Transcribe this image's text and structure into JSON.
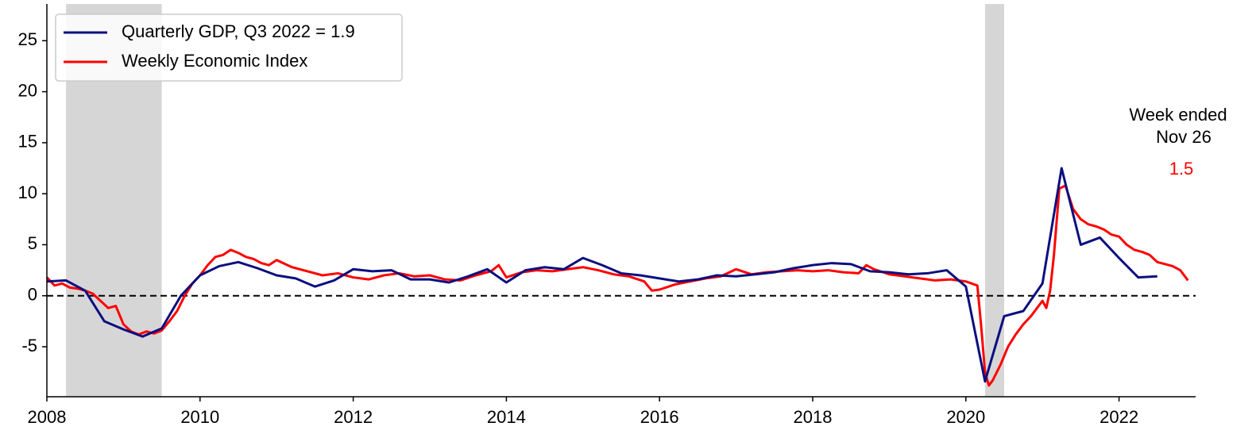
{
  "chart_data": {
    "type": "line",
    "xlim": [
      2008,
      2023
    ],
    "ylim": [
      -9.9,
      28.6
    ],
    "xticks": [
      2008,
      2010,
      2012,
      2014,
      2016,
      2018,
      2020,
      2022
    ],
    "yticks": [
      -5,
      0,
      5,
      10,
      15,
      20,
      25
    ],
    "reference_line": 0,
    "legend": "upper left",
    "shaded_regions": [
      {
        "start": 2008.25,
        "end": 2009.5
      },
      {
        "start": 2020.25,
        "end": 2020.5
      }
    ],
    "annotations": [
      {
        "text": "Week ended",
        "color": "#000000"
      },
      {
        "text": "Nov 26",
        "color": "#000000"
      },
      {
        "text": "1.5",
        "color": "#ff0000"
      }
    ],
    "series": [
      {
        "name": "Quarterly GDP, Q3 2022 = 1.9",
        "color": "#0b0f7f",
        "x": [
          2008.0,
          2008.25,
          2008.5,
          2008.75,
          2009.0,
          2009.25,
          2009.5,
          2009.75,
          2010.0,
          2010.25,
          2010.5,
          2010.75,
          2011.0,
          2011.25,
          2011.5,
          2011.75,
          2012.0,
          2012.25,
          2012.5,
          2012.75,
          2013.0,
          2013.25,
          2013.5,
          2013.75,
          2014.0,
          2014.25,
          2014.5,
          2014.75,
          2015.0,
          2015.25,
          2015.5,
          2015.75,
          2016.0,
          2016.25,
          2016.5,
          2016.75,
          2017.0,
          2017.25,
          2017.5,
          2017.75,
          2018.0,
          2018.25,
          2018.5,
          2018.75,
          2019.0,
          2019.25,
          2019.5,
          2019.75,
          2020.0,
          2020.25,
          2020.5,
          2020.75,
          2021.0,
          2021.25,
          2021.5,
          2021.75,
          2022.0,
          2022.25,
          2022.5
        ],
        "values": [
          1.4,
          1.5,
          0.5,
          -2.5,
          -3.3,
          -4.0,
          -3.2,
          0.0,
          2.0,
          2.9,
          3.3,
          2.7,
          2.0,
          1.7,
          0.9,
          1.5,
          2.6,
          2.4,
          2.5,
          1.6,
          1.6,
          1.3,
          1.9,
          2.6,
          1.3,
          2.5,
          2.8,
          2.6,
          3.7,
          3.0,
          2.2,
          2.0,
          1.7,
          1.4,
          1.6,
          2.0,
          1.9,
          2.1,
          2.3,
          2.7,
          3.0,
          3.2,
          3.1,
          2.4,
          2.3,
          2.1,
          2.2,
          2.5,
          0.9,
          -8.4,
          -2.0,
          -1.5,
          1.2,
          12.5,
          5.0,
          5.7,
          3.7,
          1.8,
          1.9
        ]
      },
      {
        "name": "Weekly Economic Index",
        "color": "#ff0000",
        "x": [
          2008.0,
          2008.1,
          2008.2,
          2008.3,
          2008.4,
          2008.5,
          2008.6,
          2008.7,
          2008.8,
          2008.9,
          2009.0,
          2009.1,
          2009.2,
          2009.3,
          2009.4,
          2009.5,
          2009.6,
          2009.7,
          2009.8,
          2009.9,
          2010.0,
          2010.1,
          2010.2,
          2010.3,
          2010.4,
          2010.5,
          2010.6,
          2010.7,
          2010.8,
          2010.9,
          2011.0,
          2011.2,
          2011.4,
          2011.6,
          2011.8,
          2012.0,
          2012.2,
          2012.4,
          2012.6,
          2012.8,
          2013.0,
          2013.2,
          2013.4,
          2013.6,
          2013.8,
          2013.9,
          2014.0,
          2014.2,
          2014.4,
          2014.6,
          2014.8,
          2015.0,
          2015.2,
          2015.4,
          2015.6,
          2015.8,
          2015.9,
          2016.0,
          2016.2,
          2016.4,
          2016.6,
          2016.8,
          2017.0,
          2017.2,
          2017.4,
          2017.6,
          2017.8,
          2018.0,
          2018.2,
          2018.4,
          2018.6,
          2018.7,
          2018.8,
          2019.0,
          2019.2,
          2019.4,
          2019.6,
          2019.8,
          2020.0,
          2020.15,
          2020.2,
          2020.25,
          2020.3,
          2020.35,
          2020.45,
          2020.55,
          2020.65,
          2020.75,
          2020.85,
          2020.95,
          2021.0,
          2021.05,
          2021.1,
          2021.15,
          2021.22,
          2021.3,
          2021.4,
          2021.5,
          2021.6,
          2021.7,
          2021.8,
          2021.9,
          2022.0,
          2022.1,
          2022.2,
          2022.3,
          2022.4,
          2022.5,
          2022.6,
          2022.7,
          2022.8,
          2022.9
        ],
        "values": [
          1.8,
          1.0,
          1.2,
          0.8,
          0.7,
          0.5,
          0.2,
          -0.5,
          -1.2,
          -1.0,
          -2.8,
          -3.5,
          -3.8,
          -3.5,
          -3.7,
          -3.4,
          -2.5,
          -1.5,
          0.0,
          1.2,
          2.0,
          3.0,
          3.8,
          4.0,
          4.5,
          4.2,
          3.8,
          3.6,
          3.2,
          3.0,
          3.5,
          2.8,
          2.4,
          2.0,
          2.2,
          1.8,
          1.6,
          2.0,
          2.2,
          1.9,
          2.0,
          1.6,
          1.5,
          2.0,
          2.4,
          3.0,
          1.8,
          2.3,
          2.5,
          2.4,
          2.6,
          2.8,
          2.5,
          2.1,
          1.9,
          1.4,
          0.5,
          0.6,
          1.1,
          1.4,
          1.7,
          1.9,
          2.6,
          2.1,
          2.3,
          2.4,
          2.5,
          2.4,
          2.5,
          2.3,
          2.2,
          3.0,
          2.6,
          2.1,
          1.9,
          1.7,
          1.5,
          1.6,
          1.4,
          1.0,
          -3.0,
          -7.5,
          -8.8,
          -8.3,
          -6.8,
          -5.0,
          -3.8,
          -2.8,
          -2.0,
          -1.0,
          -0.5,
          -1.2,
          0.5,
          4.0,
          10.5,
          10.8,
          8.5,
          7.5,
          7.0,
          6.8,
          6.5,
          6.0,
          5.8,
          5.0,
          4.5,
          4.3,
          4.0,
          3.3,
          3.1,
          2.9,
          2.5,
          1.5
        ]
      }
    ]
  }
}
